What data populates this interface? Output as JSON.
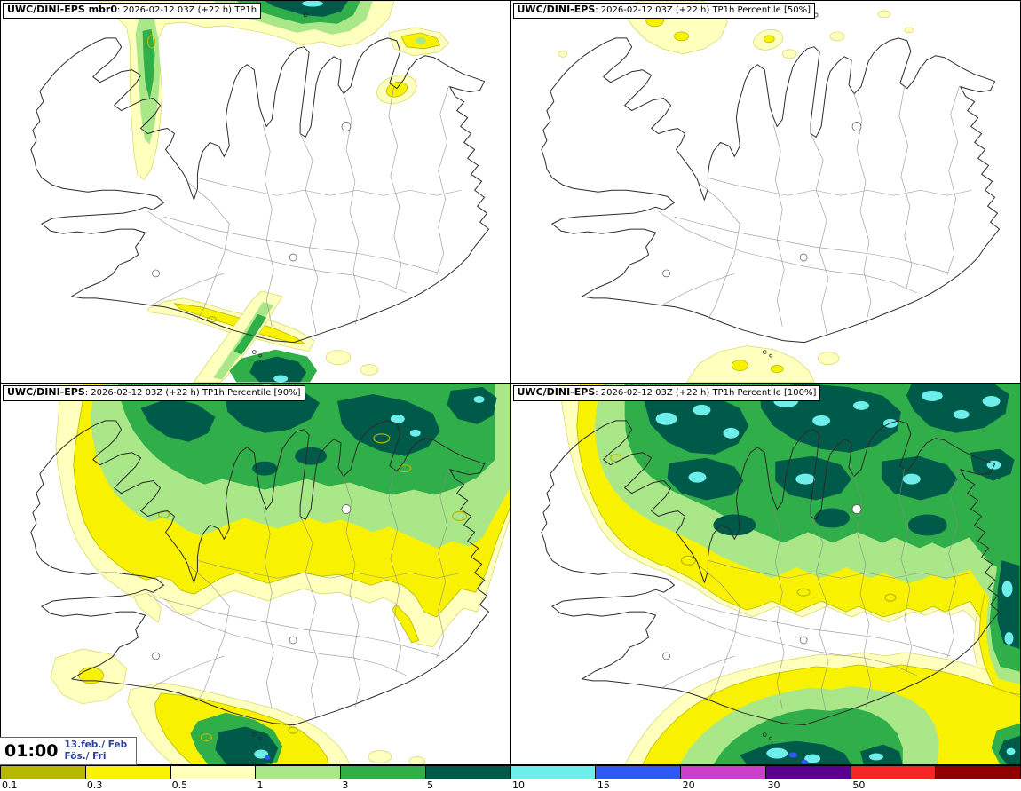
{
  "map": {
    "region": "Iceland"
  },
  "panels": [
    {
      "model": "UWC/DINI-EPS mbr0",
      "details": ": 2026-02-12 03Z (+22 h) TP1h"
    },
    {
      "model": "UWC/DINI-EPS",
      "details": ": 2026-02-12 03Z (+22 h) TP1h Percentile [50%]"
    },
    {
      "model": "UWC/DINI-EPS",
      "details": ": 2026-02-12 03Z (+22 h) TP1h Percentile [90%]"
    },
    {
      "model": "UWC/DINI-EPS",
      "details": ": 2026-02-12 03Z (+22 h) TP1h Percentile [100%]"
    }
  ],
  "time_label": {
    "time": "01:00",
    "date": "13.feb./ Feb",
    "day": "Fös./ Fri"
  },
  "colorbar": {
    "labels": [
      "0.1",
      "0.3",
      "0.5",
      "1",
      "3",
      "5",
      "10",
      "15",
      "20",
      "30",
      "50"
    ],
    "colors": [
      "#b6b800",
      "#f8f200",
      "#ffffbe",
      "#a9e788",
      "#2fae49",
      "#005a49",
      "#6deeea",
      "#2e59f2",
      "#cc3fcc",
      "#5a0090",
      "#f42525",
      "#8f0000"
    ]
  }
}
